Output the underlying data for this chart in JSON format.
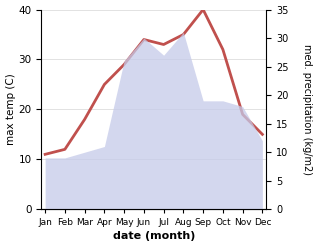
{
  "months": [
    "Jan",
    "Feb",
    "Mar",
    "Apr",
    "May",
    "Jun",
    "Jul",
    "Aug",
    "Sep",
    "Oct",
    "Nov",
    "Dec"
  ],
  "temperature": [
    11,
    12,
    18,
    25,
    29,
    34,
    33,
    35,
    40,
    32,
    19,
    15
  ],
  "precipitation": [
    9,
    9,
    10,
    11,
    26,
    30,
    27,
    31,
    19,
    19,
    18,
    12
  ],
  "temp_color": "#c0504d",
  "precip_fill_color": "#c5cae9",
  "precip_alpha": 0.75,
  "temp_ylim": [
    0,
    40
  ],
  "precip_ylim": [
    0,
    35
  ],
  "temp_yticks": [
    0,
    10,
    20,
    30,
    40
  ],
  "precip_yticks": [
    0,
    5,
    10,
    15,
    20,
    25,
    30,
    35
  ],
  "xlabel": "date (month)",
  "ylabel_left": "max temp (C)",
  "ylabel_right": "med. precipitation (kg/m2)",
  "bg_color": "#ffffff",
  "line_width": 2.0,
  "grid_color": "#cccccc"
}
